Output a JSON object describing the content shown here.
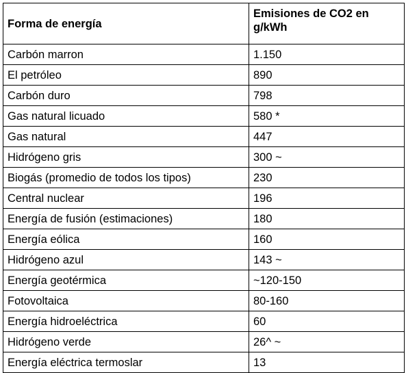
{
  "table": {
    "headers": {
      "source": "Forma de energía",
      "emissions": "Emisiones de CO2 en g/kWh"
    },
    "rows": [
      {
        "source": "Carbón marron",
        "emissions": "1.150"
      },
      {
        "source": "El petróleo",
        "emissions": "890"
      },
      {
        "source": "Carbón duro",
        "emissions": "798"
      },
      {
        "source": "Gas natural licuado",
        "emissions": "580 *"
      },
      {
        "source": "Gas natural",
        "emissions": "447"
      },
      {
        "source": "Hidrógeno gris",
        "emissions": "300 ~"
      },
      {
        "source": "Biogás (promedio de todos los tipos)",
        "emissions": "230"
      },
      {
        "source": "Central nuclear",
        "emissions": "196"
      },
      {
        "source": "Energía de fusión (estimaciones)",
        "emissions": "180"
      },
      {
        "source": "Energía eólica",
        "emissions": "160"
      },
      {
        "source": "Hidrógeno azul",
        "emissions": "143 ~"
      },
      {
        "source": "Energía geotérmica",
        "emissions": "~120-150"
      },
      {
        "source": "Fotovoltaica",
        "emissions": "80-160"
      },
      {
        "source": "Energía hidroeléctrica",
        "emissions": "60"
      },
      {
        "source": "Hidrógeno verde",
        "emissions": "26^ ~"
      },
      {
        "source": "Energía eléctrica termoslar",
        "emissions": "13"
      }
    ]
  }
}
